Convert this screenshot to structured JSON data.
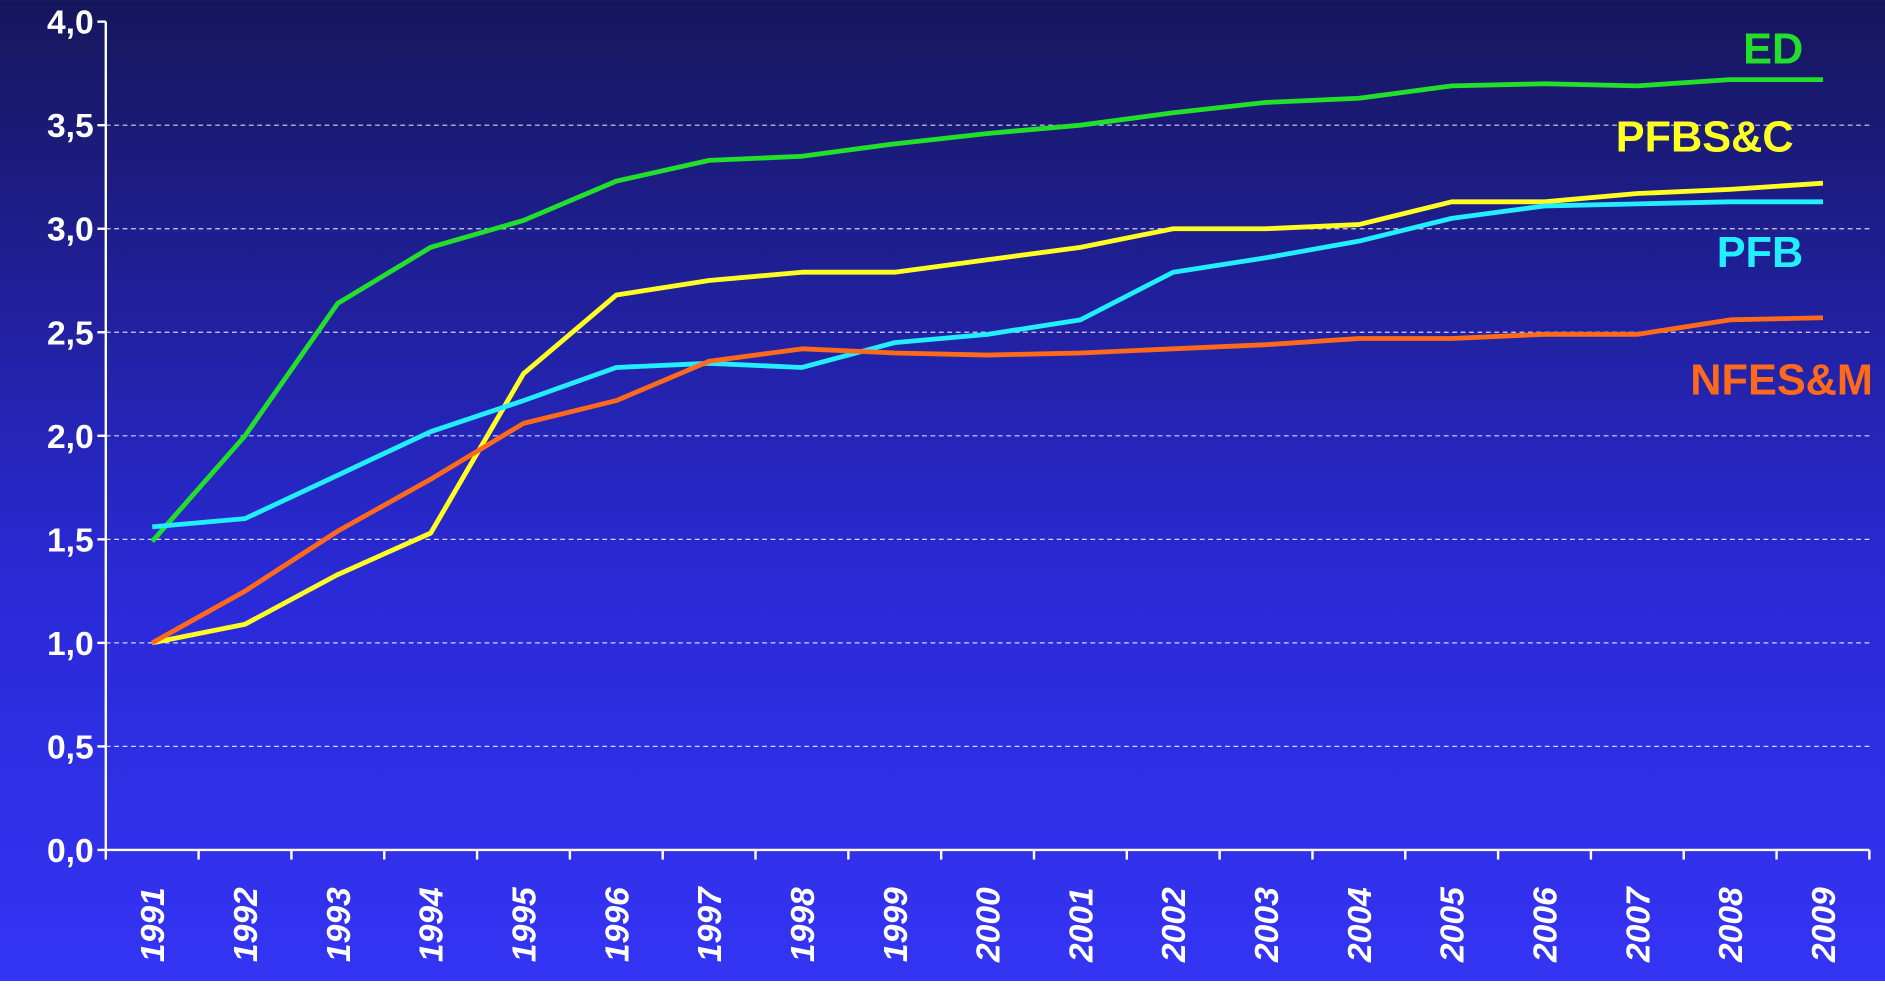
{
  "chart_data": {
    "type": "line",
    "categories": [
      "1991",
      "1992",
      "1993",
      "1994",
      "1995",
      "1996",
      "1997",
      "1998",
      "1999",
      "2000",
      "2001",
      "2002",
      "2003",
      "2004",
      "2005",
      "2006",
      "2007",
      "2008",
      "2009"
    ],
    "series": [
      {
        "name": "ED",
        "color": "#22e02a",
        "values": [
          1.49,
          2.0,
          2.64,
          2.91,
          3.04,
          3.23,
          3.33,
          3.35,
          3.41,
          3.46,
          3.5,
          3.56,
          3.61,
          3.63,
          3.69,
          3.7,
          3.69,
          3.72,
          3.72
        ]
      },
      {
        "name": "PFBS&C",
        "color": "#ffff22",
        "values": [
          1.0,
          1.09,
          1.33,
          1.53,
          2.3,
          2.68,
          2.75,
          2.79,
          2.79,
          2.85,
          2.91,
          3.0,
          3.0,
          3.02,
          3.13,
          3.13,
          3.17,
          3.19,
          3.22
        ]
      },
      {
        "name": "PFB",
        "color": "#22eeff",
        "values": [
          1.56,
          1.6,
          1.81,
          2.02,
          2.17,
          2.33,
          2.35,
          2.33,
          2.45,
          2.49,
          2.56,
          2.79,
          2.86,
          2.94,
          3.05,
          3.11,
          3.12,
          3.13,
          3.13
        ]
      },
      {
        "name": "NFES&M",
        "color": "#ff6a1a",
        "values": [
          1.0,
          1.25,
          1.54,
          1.79,
          2.06,
          2.17,
          2.36,
          2.42,
          2.4,
          2.39,
          2.4,
          2.42,
          2.44,
          2.47,
          2.47,
          2.49,
          2.49,
          2.56,
          2.57
        ]
      }
    ],
    "ylim": [
      0,
      4
    ],
    "yticks": [
      {
        "value": 0,
        "label": "0,0"
      },
      {
        "value": 0.5,
        "label": "0,5"
      },
      {
        "value": 1,
        "label": "1,0"
      },
      {
        "value": 1.5,
        "label": "1,5"
      },
      {
        "value": 2,
        "label": "2,0"
      },
      {
        "value": 2.5,
        "label": "2,5"
      },
      {
        "value": 3,
        "label": "3,0"
      },
      {
        "value": 3.5,
        "label": "3,5"
      },
      {
        "value": 4,
        "label": "4,0"
      }
    ],
    "grid": true
  }
}
